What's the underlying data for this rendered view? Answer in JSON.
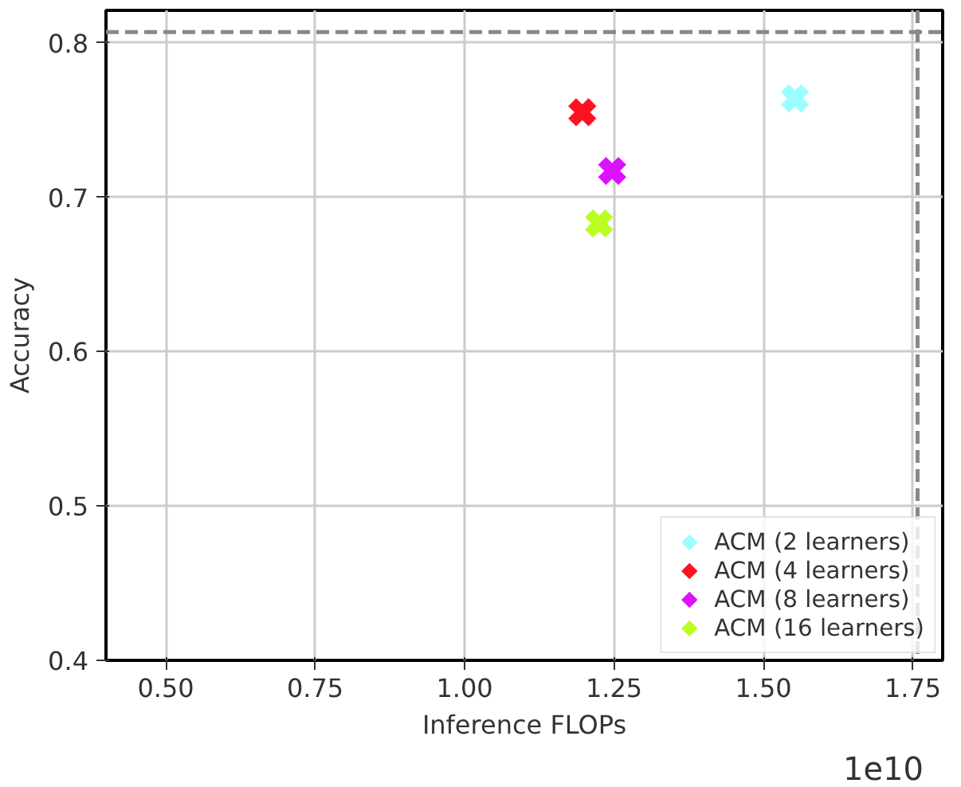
{
  "chart_data": {
    "type": "scatter",
    "xlabel": "Inference FLOPs",
    "ylabel": "Accuracy",
    "xlim": [
      0.4,
      1.8
    ],
    "ylim": [
      0.4,
      0.821
    ],
    "xticks": [
      {
        "value": 0.5,
        "label": "0.50"
      },
      {
        "value": 0.75,
        "label": "0.75"
      },
      {
        "value": 1.0,
        "label": "1.00"
      },
      {
        "value": 1.25,
        "label": "1.25"
      },
      {
        "value": 1.5,
        "label": "1.50"
      },
      {
        "value": 1.75,
        "label": "1.75"
      }
    ],
    "yticks": [
      {
        "value": 0.4,
        "label": "0.4"
      },
      {
        "value": 0.5,
        "label": "0.5"
      },
      {
        "value": 0.6,
        "label": "0.6"
      },
      {
        "value": 0.7,
        "label": "0.7"
      },
      {
        "value": 0.8,
        "label": "0.8"
      }
    ],
    "series": [
      {
        "name": "ACM (2 learners)",
        "color": "#99ffff",
        "x": [
          1.553
        ],
        "values": [
          0.764
        ]
      },
      {
        "name": "ACM (4 learners)",
        "color": "#ff1122",
        "x": [
          1.197
        ],
        "values": [
          0.755
        ]
      },
      {
        "name": "ACM (8 learners)",
        "color": "#dd11ff",
        "x": [
          1.247
        ],
        "values": [
          0.717
        ]
      },
      {
        "name": "ACM (16 learners)",
        "color": "#bbff22",
        "x": [
          1.225
        ],
        "values": [
          0.683
        ]
      }
    ],
    "ref_lines": [
      {
        "axis": "y",
        "value": 0.807,
        "color": "#888888",
        "line_style": "dashed"
      },
      {
        "axis": "x",
        "value": 1.758,
        "color": "#888888",
        "line_style": "dashed"
      }
    ],
    "annotations": [
      "1e10"
    ],
    "marker": "cross",
    "grid": true,
    "legend": "bottom right"
  }
}
